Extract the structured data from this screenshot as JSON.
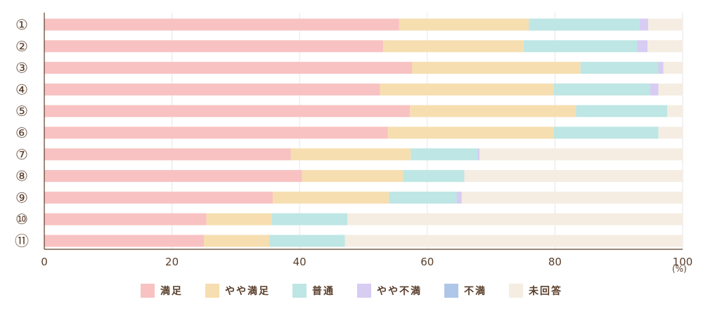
{
  "chart_data": {
    "type": "bar",
    "orientation": "horizontal",
    "stacked": true,
    "categories": [
      "①",
      "②",
      "③",
      "④",
      "⑤",
      "⑥",
      "⑦",
      "⑧",
      "⑨",
      "⑩",
      "⑪"
    ],
    "series": [
      {
        "name": "満足",
        "color": "#f8c2c2",
        "values": [
          55.6,
          53.1,
          57.6,
          52.6,
          57.3,
          53.8,
          38.6,
          40.4,
          35.8,
          25.4,
          25.0
        ]
      },
      {
        "name": "やや満足",
        "color": "#f6deb0",
        "values": [
          20.3,
          22.0,
          26.4,
          27.2,
          26.0,
          26.0,
          18.8,
          15.8,
          18.2,
          10.2,
          10.3
        ]
      },
      {
        "name": "普通",
        "color": "#bde6e4",
        "values": [
          17.3,
          17.8,
          12.2,
          15.1,
          14.3,
          16.4,
          10.5,
          9.6,
          10.6,
          11.9,
          11.8
        ]
      },
      {
        "name": "やや不満",
        "color": "#d7ccf2",
        "values": [
          1.4,
          1.6,
          0.8,
          1.3,
          0.0,
          0.0,
          0.3,
          0.0,
          0.8,
          0.0,
          0.0
        ]
      },
      {
        "name": "不満",
        "color": "#aec6e8",
        "values": [
          0,
          0,
          0,
          0,
          0,
          0,
          0,
          0,
          0,
          0,
          0
        ]
      },
      {
        "name": "未回答",
        "color": "#f5ede2",
        "values": [
          5.4,
          5.5,
          3.0,
          3.8,
          2.4,
          3.8,
          31.8,
          34.2,
          34.6,
          52.5,
          52.9
        ]
      }
    ],
    "xlim": [
      0,
      100
    ],
    "xticks": [
      0,
      20,
      40,
      60,
      80,
      100
    ],
    "xunit": "(%)",
    "grid": true,
    "legend_position": "bottom"
  }
}
